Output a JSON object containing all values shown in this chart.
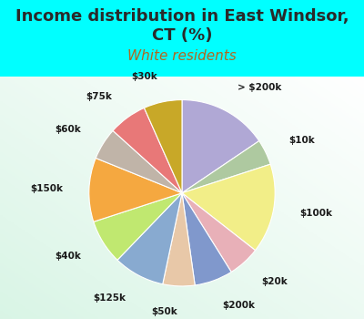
{
  "title": "Income distribution in East Windsor,\nCT (%)",
  "subtitle": "White residents",
  "background_color": "#00FFFF",
  "labels_cw": [
    "> $200k",
    "$10k",
    "$100k",
    "$20k",
    "$200k",
    "$50k",
    "$125k",
    "$40k",
    "$150k",
    "$60k",
    "$75k",
    "$30k"
  ],
  "values_cw": [
    14,
    4,
    14,
    5,
    6,
    5,
    8,
    7,
    10,
    5,
    6,
    6
  ],
  "colors_cw": [
    "#b0a8d5",
    "#aec9a0",
    "#f2ee88",
    "#e8b0b8",
    "#8098cc",
    "#e8c8a8",
    "#88aad0",
    "#c0e870",
    "#f5a840",
    "#c0b4a8",
    "#e87878",
    "#c8a828"
  ],
  "title_fontsize": 13,
  "subtitle_fontsize": 11,
  "title_color": "#2a2a2a",
  "subtitle_color": "#b06820",
  "label_fontsize": 7.5
}
